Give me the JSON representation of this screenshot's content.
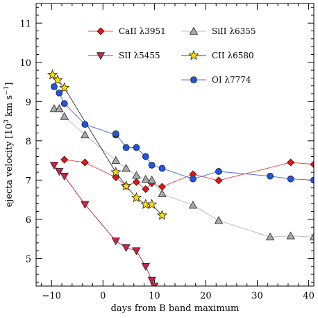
{
  "chart_data": {
    "type": "line",
    "title": "",
    "xlabel": "days from B band maximum",
    "ylabel_main": "ejecta velocity [10",
    "ylabel_exp": "3",
    "ylabel_unit": " km s",
    "ylabel_unit_exp": "−1",
    "ylabel_close": "]",
    "xlim": [
      -13,
      41
    ],
    "ylim": [
      4.3,
      11.5
    ],
    "xticks": [
      -10,
      0,
      10,
      20,
      30,
      40
    ],
    "yticks": [
      5,
      6,
      7,
      8,
      9,
      10,
      11
    ],
    "xtick_labels": [
      "−10",
      "0",
      "10",
      "20",
      "30",
      "40"
    ],
    "ytick_labels": [
      "5",
      "6",
      "7",
      "8",
      "9",
      "10",
      "11"
    ],
    "legend_placement": "top-right",
    "series": [
      {
        "name": "CaII λ3951",
        "color": "#ee1111",
        "line_color": "#e05050",
        "marker": "diamond",
        "points": [
          [
            -7.5,
            7.52
          ],
          [
            -3.5,
            7.45
          ],
          [
            2.5,
            7.07
          ],
          [
            4.5,
            6.85
          ],
          [
            6.5,
            6.95
          ],
          [
            8.3,
            6.77
          ],
          [
            9.5,
            6.92
          ],
          [
            11.5,
            6.83
          ],
          [
            17.5,
            7.15
          ],
          [
            22.5,
            6.99
          ],
          [
            36.5,
            7.45
          ],
          [
            41,
            7.4
          ]
        ]
      },
      {
        "name": "SiII λ6355",
        "color": "#aaaaaa",
        "line_color": "#bbbbbb",
        "marker": "triangle-up",
        "points": [
          [
            -9.5,
            8.82
          ],
          [
            -8.5,
            8.82
          ],
          [
            -7.5,
            8.62
          ],
          [
            -3.5,
            8.15
          ],
          [
            2.5,
            7.5
          ],
          [
            4.5,
            7.3
          ],
          [
            6.5,
            7.12
          ],
          [
            8.3,
            7.02
          ],
          [
            9.5,
            7.0
          ],
          [
            11.5,
            6.65
          ],
          [
            17.5,
            6.36
          ],
          [
            22.5,
            5.97
          ],
          [
            32.5,
            5.55
          ],
          [
            36.5,
            5.58
          ],
          [
            41,
            5.55
          ]
        ]
      },
      {
        "name": "SII λ5455",
        "color": "#cc2244",
        "line_color": "#b03050",
        "marker": "triangle-down",
        "points": [
          [
            -9.5,
            7.38
          ],
          [
            -8.5,
            7.22
          ],
          [
            -7.5,
            7.1
          ],
          [
            -3.5,
            6.38
          ],
          [
            2.5,
            5.45
          ],
          [
            4.5,
            5.28
          ],
          [
            6.5,
            5.2
          ],
          [
            8.3,
            4.8
          ],
          [
            9.5,
            4.45
          ],
          [
            10,
            4.3
          ]
        ]
      },
      {
        "name": "CII λ6580",
        "color": "#ffdd00",
        "line_color": "#444444",
        "marker": "star",
        "points": [
          [
            -9.8,
            9.68
          ],
          [
            -8.8,
            9.55
          ],
          [
            -7.5,
            9.35
          ],
          [
            2.5,
            7.2
          ],
          [
            4.5,
            6.85
          ],
          [
            6.5,
            6.55
          ],
          [
            8.3,
            6.38
          ],
          [
            9.5,
            6.38
          ],
          [
            11.5,
            6.1
          ]
        ]
      },
      {
        "name": "OI λ7774",
        "color": "#2255dd",
        "line_color": "#5577dd",
        "marker": "circle",
        "points": [
          [
            -9.5,
            9.38
          ],
          [
            -8.5,
            9.22
          ],
          [
            -7.5,
            8.95
          ],
          [
            -3.5,
            8.42
          ],
          [
            2.5,
            8.15
          ],
          [
            2.5,
            8.18
          ],
          [
            4.5,
            7.83
          ],
          [
            6.5,
            7.83
          ],
          [
            8.3,
            7.6
          ],
          [
            9.5,
            7.38
          ],
          [
            11.5,
            7.3
          ],
          [
            17.5,
            7.03
          ],
          [
            22.5,
            7.22
          ],
          [
            32.5,
            7.1
          ],
          [
            36.5,
            7.03
          ],
          [
            41,
            7.0
          ]
        ]
      }
    ]
  }
}
